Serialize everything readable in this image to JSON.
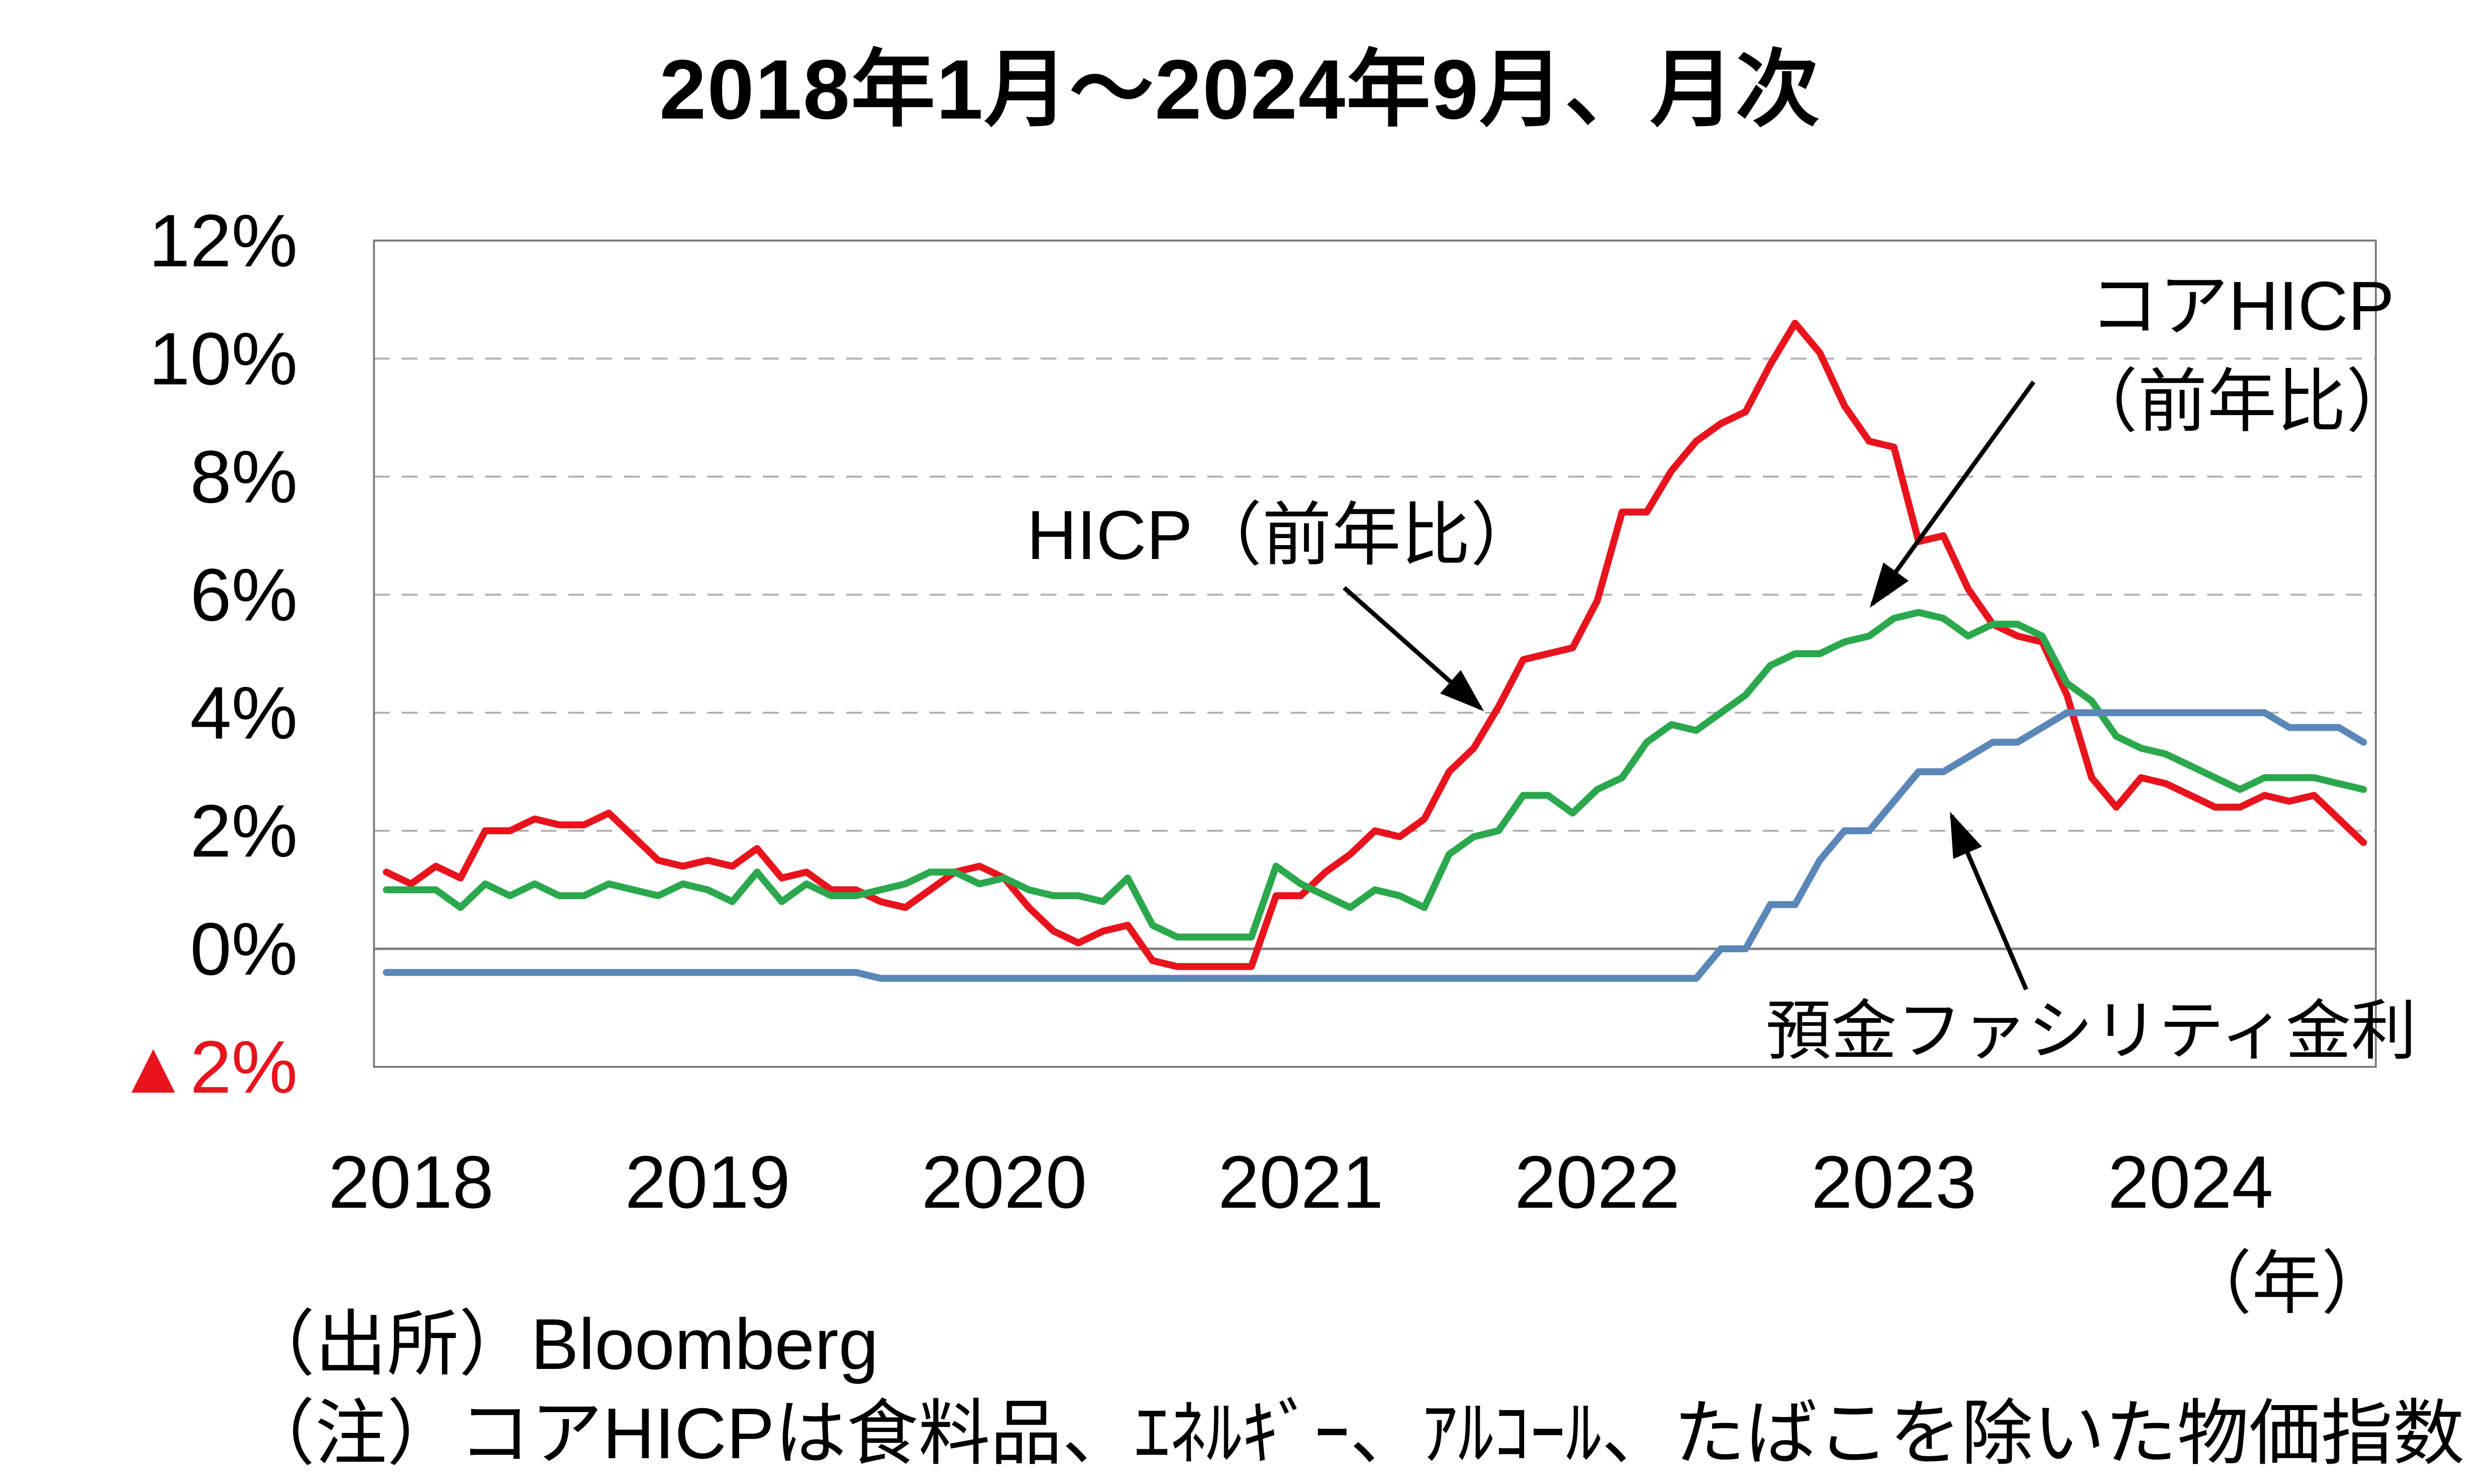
{
  "source": "（出所）Bloomberg",
  "note": "（注）コアHICPは食料品、ｴﾈﾙｷﾞｰ、ｱﾙｺｰﾙ、たばこを除いた物価指数",
  "chart_data": {
    "type": "line",
    "title": "2018年1月～2024年9月、月次",
    "x_frequency": "monthly",
    "x_start": "2018-01",
    "x_end": "2024-09",
    "x_tick_labels": [
      "2018",
      "2019",
      "2020",
      "2021",
      "2022",
      "2023",
      "2024"
    ],
    "x_axis_unit": "（年）",
    "ylim": [
      -2,
      12
    ],
    "grid": "horizontal dashed lines every 2%, solid line at 0%",
    "y_ticks": [
      {
        "label": "12%",
        "value": 12
      },
      {
        "label": "10%",
        "value": 10
      },
      {
        "label": "8%",
        "value": 8
      },
      {
        "label": "6%",
        "value": 6
      },
      {
        "label": "4%",
        "value": 4
      },
      {
        "label": "2%",
        "value": 2
      },
      {
        "label": "0%",
        "value": 0
      },
      {
        "label": "▲2%",
        "value": -2,
        "color": "#e8131c"
      }
    ],
    "series": [
      {
        "name": "HICP（前年比）",
        "color": "#e8131c",
        "values": [
          1.3,
          1.1,
          1.4,
          1.2,
          2.0,
          2.0,
          2.2,
          2.1,
          2.1,
          2.3,
          1.9,
          1.5,
          1.4,
          1.5,
          1.4,
          1.7,
          1.2,
          1.3,
          1.0,
          1.0,
          0.8,
          0.7,
          1.0,
          1.3,
          1.4,
          1.2,
          0.7,
          0.3,
          0.1,
          0.3,
          0.4,
          -0.2,
          -0.3,
          -0.3,
          -0.3,
          -0.3,
          0.9,
          0.9,
          1.3,
          1.6,
          2.0,
          1.9,
          2.2,
          3.0,
          3.4,
          4.1,
          4.9,
          5.0,
          5.1,
          5.9,
          7.4,
          7.4,
          8.1,
          8.6,
          8.9,
          9.1,
          9.9,
          10.6,
          10.1,
          9.2,
          8.6,
          8.5,
          6.9,
          7.0,
          6.1,
          5.5,
          5.3,
          5.2,
          4.3,
          2.9,
          2.4,
          2.9,
          2.8,
          2.6,
          2.4,
          2.4,
          2.6,
          2.5,
          2.6,
          2.2,
          1.8
        ]
      },
      {
        "name": "コアHICP（前年比）",
        "color": "#2ba84d",
        "values": [
          1.0,
          1.0,
          1.0,
          0.7,
          1.1,
          0.9,
          1.1,
          0.9,
          0.9,
          1.1,
          1.0,
          0.9,
          1.1,
          1.0,
          0.8,
          1.3,
          0.8,
          1.1,
          0.9,
          0.9,
          1.0,
          1.1,
          1.3,
          1.3,
          1.1,
          1.2,
          1.0,
          0.9,
          0.9,
          0.8,
          1.2,
          0.4,
          0.2,
          0.2,
          0.2,
          0.2,
          1.4,
          1.1,
          0.9,
          0.7,
          1.0,
          0.9,
          0.7,
          1.6,
          1.9,
          2.0,
          2.6,
          2.6,
          2.3,
          2.7,
          2.9,
          3.5,
          3.8,
          3.7,
          4.0,
          4.3,
          4.8,
          5.0,
          5.0,
          5.2,
          5.3,
          5.6,
          5.7,
          5.6,
          5.3,
          5.5,
          5.5,
          5.3,
          4.5,
          4.2,
          3.6,
          3.4,
          3.3,
          3.1,
          2.9,
          2.7,
          2.9,
          2.9,
          2.9,
          2.8,
          2.7
        ]
      },
      {
        "name": "預金ファシリティ金利",
        "color": "#5b87b8",
        "values": [
          -0.4,
          -0.4,
          -0.4,
          -0.4,
          -0.4,
          -0.4,
          -0.4,
          -0.4,
          -0.4,
          -0.4,
          -0.4,
          -0.4,
          -0.4,
          -0.4,
          -0.4,
          -0.4,
          -0.4,
          -0.4,
          -0.4,
          -0.4,
          -0.5,
          -0.5,
          -0.5,
          -0.5,
          -0.5,
          -0.5,
          -0.5,
          -0.5,
          -0.5,
          -0.5,
          -0.5,
          -0.5,
          -0.5,
          -0.5,
          -0.5,
          -0.5,
          -0.5,
          -0.5,
          -0.5,
          -0.5,
          -0.5,
          -0.5,
          -0.5,
          -0.5,
          -0.5,
          -0.5,
          -0.5,
          -0.5,
          -0.5,
          -0.5,
          -0.5,
          -0.5,
          -0.5,
          -0.5,
          0.0,
          0.0,
          0.75,
          0.75,
          1.5,
          2.0,
          2.0,
          2.5,
          3.0,
          3.0,
          3.25,
          3.5,
          3.5,
          3.75,
          4.0,
          4.0,
          4.0,
          4.0,
          4.0,
          4.0,
          4.0,
          4.0,
          4.0,
          3.75,
          3.75,
          3.75,
          3.5
        ]
      }
    ],
    "annotations": [
      {
        "lines": [
          "HICP（前年比）"
        ],
        "arrow": {
          "from": [
            2710,
            1185
          ],
          "to": [
            2985,
            1428
          ]
        }
      },
      {
        "lines": [
          "コアHICP",
          "（前年比）"
        ],
        "arrow": {
          "from": [
            4100,
            770
          ],
          "to": [
            3775,
            1218
          ]
        }
      },
      {
        "lines": [
          "預金ファシリティ金利"
        ],
        "arrow": {
          "from": [
            4085,
            1995
          ],
          "to": [
            3935,
            1645
          ]
        }
      }
    ]
  }
}
